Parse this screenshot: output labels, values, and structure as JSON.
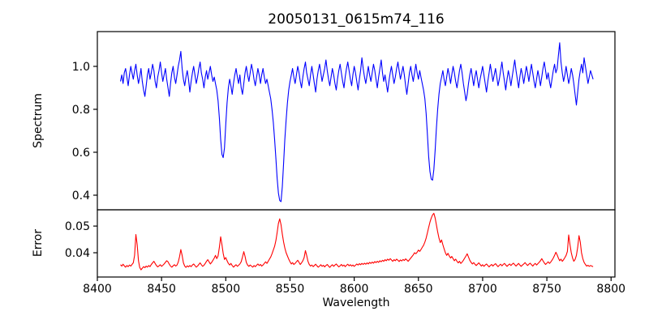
{
  "chart_data": [
    {
      "type": "line",
      "id": "spectrum",
      "title": "20050131_0615m74_116",
      "ylabel": "Spectrum",
      "line_color": "#0000ff",
      "xlim": [
        8400,
        8803
      ],
      "ylim": [
        0.332,
        1.162
      ],
      "yticks": [
        0.4,
        0.6,
        0.8,
        1.0
      ],
      "ytick_labels": [
        "0.4",
        "0.6",
        "0.8",
        "1.0"
      ],
      "x_start": 8418,
      "x_step": 1,
      "values": [
        0.93,
        0.96,
        0.92,
        0.97,
        0.99,
        0.95,
        0.91,
        0.96,
        1.0,
        0.97,
        0.94,
        0.98,
        1.01,
        0.96,
        0.92,
        0.95,
        0.99,
        0.93,
        0.89,
        0.86,
        0.91,
        0.96,
        0.99,
        0.94,
        0.97,
        1.01,
        0.98,
        0.93,
        0.9,
        0.95,
        0.98,
        1.02,
        0.97,
        0.93,
        0.96,
        0.99,
        0.94,
        0.9,
        0.86,
        0.92,
        0.97,
        1.0,
        0.95,
        0.92,
        0.96,
        1.0,
        1.03,
        1.07,
        0.99,
        0.94,
        0.91,
        0.95,
        0.98,
        0.94,
        0.88,
        0.93,
        0.97,
        1.0,
        0.96,
        0.92,
        0.95,
        0.99,
        1.02,
        0.97,
        0.94,
        0.9,
        0.95,
        0.98,
        0.94,
        0.97,
        1.0,
        0.96,
        0.93,
        0.95,
        0.92,
        0.89,
        0.84,
        0.76,
        0.66,
        0.59,
        0.575,
        0.62,
        0.73,
        0.83,
        0.9,
        0.94,
        0.91,
        0.87,
        0.92,
        0.96,
        0.99,
        0.95,
        0.92,
        0.96,
        0.9,
        0.87,
        0.92,
        0.97,
        1.0,
        0.96,
        0.93,
        0.97,
        1.01,
        0.98,
        0.94,
        0.91,
        0.95,
        0.99,
        0.96,
        0.92,
        0.96,
        0.99,
        0.95,
        0.92,
        0.94,
        0.91,
        0.88,
        0.85,
        0.8,
        0.74,
        0.66,
        0.57,
        0.48,
        0.41,
        0.375,
        0.37,
        0.44,
        0.55,
        0.66,
        0.75,
        0.83,
        0.89,
        0.93,
        0.96,
        0.99,
        0.95,
        0.92,
        0.96,
        1.0,
        0.97,
        0.93,
        0.9,
        0.95,
        0.99,
        1.02,
        0.97,
        0.94,
        0.91,
        0.96,
        1.0,
        0.96,
        0.92,
        0.88,
        0.94,
        0.98,
        1.01,
        0.97,
        0.93,
        0.96,
        0.99,
        1.03,
        0.98,
        0.94,
        0.91,
        0.95,
        0.99,
        0.96,
        0.92,
        0.89,
        0.94,
        0.98,
        1.01,
        0.97,
        0.93,
        0.9,
        0.95,
        0.99,
        1.02,
        0.98,
        0.94,
        0.91,
        0.96,
        1.0,
        0.97,
        0.93,
        0.89,
        0.94,
        0.98,
        1.04,
        0.99,
        0.95,
        0.92,
        0.96,
        1.0,
        0.96,
        0.93,
        0.97,
        1.01,
        0.98,
        0.94,
        0.9,
        0.95,
        0.99,
        1.03,
        0.97,
        0.93,
        0.96,
        0.92,
        0.88,
        0.93,
        0.97,
        1.0,
        0.96,
        0.92,
        0.95,
        0.99,
        1.02,
        0.98,
        0.94,
        0.97,
        1.0,
        0.96,
        0.91,
        0.87,
        0.92,
        0.97,
        1.0,
        0.96,
        0.93,
        0.97,
        1.01,
        0.97,
        0.94,
        0.98,
        0.95,
        0.92,
        0.89,
        0.85,
        0.78,
        0.68,
        0.58,
        0.51,
        0.475,
        0.47,
        0.52,
        0.61,
        0.71,
        0.8,
        0.87,
        0.92,
        0.95,
        0.98,
        0.94,
        0.91,
        0.95,
        0.99,
        0.96,
        0.92,
        0.96,
        1.0,
        0.97,
        0.93,
        0.9,
        0.94,
        0.98,
        1.01,
        0.97,
        0.92,
        0.88,
        0.84,
        0.87,
        0.92,
        0.96,
        0.99,
        0.95,
        0.91,
        0.95,
        0.98,
        0.94,
        0.9,
        0.94,
        0.97,
        1.0,
        0.96,
        0.92,
        0.88,
        0.93,
        0.97,
        1.01,
        0.97,
        0.93,
        0.96,
        0.99,
        0.95,
        0.91,
        0.94,
        0.98,
        1.02,
        0.97,
        0.93,
        0.89,
        0.94,
        0.98,
        0.95,
        0.91,
        0.95,
        0.99,
        1.03,
        0.98,
        0.94,
        0.9,
        0.95,
        0.99,
        0.96,
        0.92,
        0.96,
        1.0,
        0.97,
        0.93,
        0.97,
        1.01,
        0.97,
        0.93,
        0.9,
        0.94,
        0.98,
        0.95,
        0.91,
        0.95,
        0.99,
        1.02,
        0.98,
        0.94,
        0.97,
        0.93,
        0.9,
        0.94,
        0.98,
        1.01,
        0.97,
        0.99,
        1.05,
        1.11,
        1.02,
        0.97,
        0.93,
        0.96,
        1.0,
        0.96,
        0.92,
        0.95,
        0.99,
        0.96,
        0.92,
        0.87,
        0.82,
        0.88,
        0.94,
        0.98,
        1.01,
        0.97,
        1.04,
        1.0,
        0.96,
        0.92,
        0.95,
        0.98,
        0.96,
        0.94
      ]
    },
    {
      "type": "line",
      "id": "error",
      "ylabel": "Error",
      "xlabel": "Wavelength",
      "line_color": "#ff0000",
      "xlim": [
        8400,
        8803
      ],
      "ylim": [
        0.0309,
        0.0561
      ],
      "yticks": [
        0.04,
        0.05
      ],
      "ytick_labels": [
        "0.04",
        "0.05"
      ],
      "xticks": [
        8400,
        8450,
        8500,
        8550,
        8600,
        8650,
        8700,
        8750,
        8800
      ],
      "xtick_labels": [
        "8400",
        "8450",
        "8500",
        "8550",
        "8600",
        "8650",
        "8700",
        "8750",
        "8800"
      ],
      "x_start": 8418,
      "x_step": 1,
      "values": [
        0.0355,
        0.035,
        0.0357,
        0.0351,
        0.0346,
        0.0352,
        0.0348,
        0.0354,
        0.035,
        0.0356,
        0.0362,
        0.039,
        0.0468,
        0.043,
        0.037,
        0.0345,
        0.0336,
        0.0342,
        0.0348,
        0.0344,
        0.035,
        0.0346,
        0.0352,
        0.0348,
        0.0356,
        0.0362,
        0.0368,
        0.036,
        0.0352,
        0.0347,
        0.0351,
        0.0355,
        0.0349,
        0.0353,
        0.0358,
        0.0364,
        0.037,
        0.0366,
        0.0357,
        0.035,
        0.0346,
        0.0351,
        0.0355,
        0.035,
        0.0354,
        0.0365,
        0.0385,
        0.0412,
        0.039,
        0.0362,
        0.035,
        0.0345,
        0.0351,
        0.0347,
        0.0352,
        0.0348,
        0.0354,
        0.0358,
        0.0352,
        0.0346,
        0.035,
        0.0356,
        0.0362,
        0.0355,
        0.0349,
        0.0353,
        0.036,
        0.0368,
        0.0374,
        0.0366,
        0.0358,
        0.0364,
        0.0372,
        0.038,
        0.039,
        0.0378,
        0.0388,
        0.042,
        0.046,
        0.043,
        0.0398,
        0.0375,
        0.0382,
        0.037,
        0.036,
        0.0354,
        0.036,
        0.0352,
        0.0346,
        0.0351,
        0.0355,
        0.0349,
        0.0353,
        0.0358,
        0.0366,
        0.0384,
        0.0404,
        0.0386,
        0.0364,
        0.0354,
        0.0349,
        0.0354,
        0.035,
        0.0346,
        0.0352,
        0.0348,
        0.0353,
        0.0358,
        0.0352,
        0.0356,
        0.035,
        0.0354,
        0.036,
        0.0366,
        0.036,
        0.0368,
        0.0376,
        0.0384,
        0.0396,
        0.041,
        0.0424,
        0.0446,
        0.0475,
        0.051,
        0.0527,
        0.0505,
        0.047,
        0.044,
        0.0418,
        0.04,
        0.0388,
        0.0376,
        0.0366,
        0.0358,
        0.0363,
        0.0356,
        0.036,
        0.0366,
        0.0372,
        0.0364,
        0.0356,
        0.0362,
        0.037,
        0.0382,
        0.0408,
        0.039,
        0.0368,
        0.0356,
        0.035,
        0.0354,
        0.0348,
        0.0352,
        0.0357,
        0.0351,
        0.0346,
        0.035,
        0.0355,
        0.0349,
        0.0353,
        0.0347,
        0.0352,
        0.0356,
        0.035,
        0.0345,
        0.0351,
        0.0355,
        0.0349,
        0.0354,
        0.0358,
        0.0352,
        0.0347,
        0.0351,
        0.0356,
        0.035,
        0.0354,
        0.0348,
        0.0353,
        0.0357,
        0.0351,
        0.0355,
        0.035,
        0.0354,
        0.0349,
        0.0353,
        0.0358,
        0.0354,
        0.0359,
        0.0355,
        0.036,
        0.0356,
        0.0361,
        0.0357,
        0.0362,
        0.0358,
        0.0364,
        0.036,
        0.0365,
        0.0361,
        0.0367,
        0.0363,
        0.0368,
        0.0364,
        0.037,
        0.0366,
        0.0372,
        0.0368,
        0.0374,
        0.037,
        0.0376,
        0.0372,
        0.0378,
        0.0373,
        0.0368,
        0.0374,
        0.037,
        0.0376,
        0.0372,
        0.0367,
        0.0373,
        0.0369,
        0.0375,
        0.0371,
        0.0377,
        0.0373,
        0.0368,
        0.0374,
        0.038,
        0.0386,
        0.0392,
        0.04,
        0.0396,
        0.0402,
        0.041,
        0.0405,
        0.0412,
        0.042,
        0.0428,
        0.044,
        0.0455,
        0.0475,
        0.0495,
        0.0515,
        0.053,
        0.0542,
        0.0548,
        0.053,
        0.0505,
        0.0478,
        0.0455,
        0.0438,
        0.0448,
        0.043,
        0.0415,
        0.04,
        0.039,
        0.0398,
        0.0388,
        0.038,
        0.0386,
        0.0378,
        0.037,
        0.0376,
        0.0368,
        0.0362,
        0.0368,
        0.036,
        0.0365,
        0.0372,
        0.038,
        0.0388,
        0.0396,
        0.0384,
        0.0372,
        0.0364,
        0.0358,
        0.0363,
        0.0357,
        0.0352,
        0.0357,
        0.0362,
        0.0356,
        0.035,
        0.0355,
        0.0349,
        0.0354,
        0.0358,
        0.0352,
        0.0347,
        0.0352,
        0.0356,
        0.035,
        0.0355,
        0.0359,
        0.0353,
        0.0348,
        0.0353,
        0.0357,
        0.0351,
        0.0356,
        0.036,
        0.0354,
        0.0349,
        0.0354,
        0.0358,
        0.0352,
        0.0357,
        0.0361,
        0.0355,
        0.035,
        0.0355,
        0.036,
        0.0354,
        0.0349,
        0.0354,
        0.0358,
        0.0363,
        0.0357,
        0.0352,
        0.0357,
        0.0361,
        0.0355,
        0.035,
        0.0356,
        0.036,
        0.0354,
        0.0359,
        0.0364,
        0.037,
        0.0378,
        0.037,
        0.0362,
        0.0356,
        0.0361,
        0.0366,
        0.036,
        0.0365,
        0.0372,
        0.038,
        0.039,
        0.0402,
        0.0392,
        0.038,
        0.037,
        0.0376,
        0.0368,
        0.0374,
        0.0382,
        0.039,
        0.0405,
        0.0467,
        0.043,
        0.04,
        0.038,
        0.0368,
        0.0375,
        0.039,
        0.042,
        0.0464,
        0.044,
        0.04,
        0.0378,
        0.0364,
        0.0356,
        0.035,
        0.0353,
        0.0349,
        0.0352,
        0.035,
        0.0348
      ]
    }
  ]
}
